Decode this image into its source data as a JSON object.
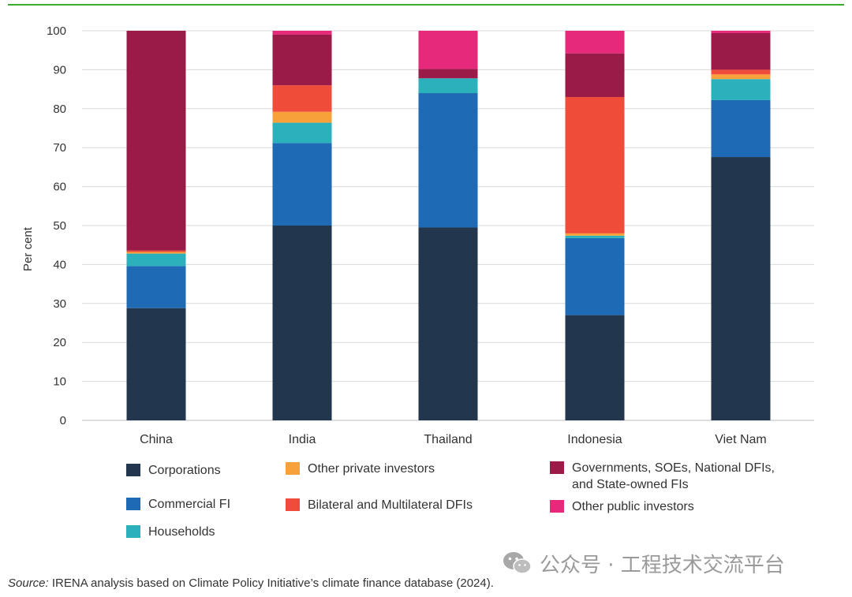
{
  "chart_data": {
    "type": "bar",
    "stacked": true,
    "categories": [
      "China",
      "India",
      "Thailand",
      "Indonesia",
      "Viet Nam"
    ],
    "ylabel": "Per cent",
    "ylim": [
      0,
      100
    ],
    "yticks": [
      0,
      10,
      20,
      30,
      40,
      50,
      60,
      70,
      80,
      90,
      100
    ],
    "grid": true,
    "legend_position": "bottom",
    "series": [
      {
        "name": "Corporations",
        "color": "#22374d",
        "values": [
          28.8,
          50.0,
          49.5,
          27.0,
          67.6
        ]
      },
      {
        "name": "Commercial FI",
        "color": "#1f6ab4",
        "values": [
          10.8,
          21.2,
          34.5,
          19.8,
          14.6
        ]
      },
      {
        "name": "Households",
        "color": "#2bb1bb",
        "values": [
          3.2,
          5.2,
          3.8,
          0.6,
          5.4
        ]
      },
      {
        "name": "Other private investors",
        "color": "#f7a13a",
        "values": [
          0.4,
          2.8,
          0.0,
          0.6,
          1.2
        ]
      },
      {
        "name": "Bilateral and Multilateral DFIs",
        "color": "#ef4c3a",
        "values": [
          0.4,
          6.8,
          0.0,
          35.0,
          1.2
        ]
      },
      {
        "name": "Governments, SOEs,  National DFIs, and State-owned FIs",
        "color": "#9b1b48",
        "values": [
          56.4,
          13.0,
          2.4,
          11.2,
          9.4
        ]
      },
      {
        "name": "Other public investors",
        "color": "#e6297a",
        "values": [
          0.0,
          1.0,
          9.8,
          5.8,
          0.6
        ]
      }
    ]
  },
  "legend": {
    "corporations": "Corporations",
    "commercial_fi": "Commercial FI",
    "households": "Households",
    "other_private": "Other private investors",
    "bilateral": "Bilateral and Multilateral DFIs",
    "governments_line1": "Governments, SOEs,  National DFIs,",
    "governments_line2": "and State-owned FIs",
    "other_public": "Other public investors"
  },
  "watermark": "公众号 · 工程技术交流平台",
  "source": {
    "label": "Source:",
    "text": " IRENA analysis based on Climate Policy Initiative’s climate finance database (2024)."
  }
}
